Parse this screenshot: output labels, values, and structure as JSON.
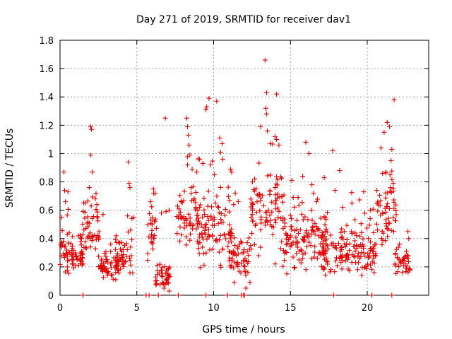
{
  "chart_data": {
    "type": "scatter",
    "title": "Day 271 of 2019, SRMTID for receiver dav1",
    "xlabel": "GPS time / hours",
    "ylabel": "SRMTID / TECUs",
    "xlim": [
      0,
      24
    ],
    "ylim": [
      0,
      1.8
    ],
    "xticks": [
      0,
      5,
      10,
      15,
      20
    ],
    "yticks": [
      0,
      0.2,
      0.4,
      0.6,
      0.8,
      1,
      1.2,
      1.4,
      1.6,
      1.8
    ],
    "grid": true,
    "marker": "+",
    "series": [
      {
        "name": "SRMTID",
        "color": "#e00000",
        "segments": [
          {
            "x0": 0.0,
            "x1": 0.9,
            "base": 0.32,
            "spread": 0.14,
            "spikes": [
              [
                0.25,
                0.87
              ],
              [
                0.3,
                0.74
              ],
              [
                0.35,
                0.66
              ],
              [
                0.1,
                0.55
              ],
              [
                0.6,
                0.44
              ]
            ]
          },
          {
            "x0": 0.7,
            "x1": 1.5,
            "base": 0.28,
            "spread": 0.07,
            "spikes": [
              [
                1.2,
                0.42
              ],
              [
                1.4,
                0.4
              ]
            ]
          },
          {
            "x0": 1.3,
            "x1": 2.6,
            "base": 0.46,
            "spread": 0.16,
            "spikes": [
              [
                2.0,
                1.19
              ],
              [
                2.05,
                1.17
              ],
              [
                2.0,
                0.99
              ],
              [
                2.1,
                0.87
              ],
              [
                1.9,
                0.76
              ],
              [
                2.3,
                0.68
              ],
              [
                2.4,
                0.64
              ]
            ]
          },
          {
            "x0": 2.5,
            "x1": 3.9,
            "base": 0.2,
            "spread": 0.08,
            "spikes": [
              [
                2.8,
                0.57
              ],
              [
                3.3,
                0.36
              ]
            ]
          },
          {
            "x0": 3.6,
            "x1": 4.8,
            "base": 0.28,
            "spread": 0.13,
            "spikes": [
              [
                4.45,
                0.94
              ],
              [
                4.5,
                0.79
              ],
              [
                4.55,
                0.76
              ],
              [
                4.4,
                0.56
              ],
              [
                4.6,
                0.46
              ]
            ]
          },
          {
            "x0": 5.7,
            "x1": 6.3,
            "base": 0.4,
            "spread": 0.18,
            "spikes": [
              [
                5.9,
                0.66
              ],
              [
                6.1,
                0.72
              ],
              [
                6.2,
                0.72
              ]
            ]
          },
          {
            "x0": 6.2,
            "x1": 7.2,
            "base": 0.12,
            "spread": 0.07,
            "spikes": [
              [
                6.85,
                1.25
              ],
              [
                6.9,
                0.59
              ],
              [
                7.1,
                0.6
              ],
              [
                6.6,
                0.58
              ]
            ]
          },
          {
            "x0": 7.6,
            "x1": 9.0,
            "base": 0.55,
            "spread": 0.2,
            "spikes": [
              [
                8.25,
                1.25
              ],
              [
                8.3,
                1.19
              ],
              [
                8.35,
                1.13
              ],
              [
                8.4,
                1.06
              ],
              [
                8.45,
                0.99
              ],
              [
                8.3,
                0.92
              ],
              [
                8.6,
                0.89
              ],
              [
                8.9,
                0.87
              ]
            ]
          },
          {
            "x0": 8.9,
            "x1": 11.2,
            "base": 0.45,
            "spread": 0.22,
            "spikes": [
              [
                9.7,
                1.39
              ],
              [
                10.2,
                1.37
              ],
              [
                9.5,
                1.31
              ],
              [
                9.55,
                1.33
              ],
              [
                10.4,
                1.11
              ],
              [
                10.55,
                1.07
              ],
              [
                10.45,
                1.01
              ],
              [
                10.6,
                0.96
              ],
              [
                11.1,
                0.89
              ],
              [
                9.3,
                0.93
              ],
              [
                9.8,
                0.92
              ]
            ]
          },
          {
            "x0": 11.0,
            "x1": 12.5,
            "base": 0.28,
            "spread": 0.18,
            "spikes": [
              [
                11.3,
                0.64
              ],
              [
                11.6,
                0.66
              ],
              [
                12.1,
                0.05
              ]
            ]
          },
          {
            "x0": 12.4,
            "x1": 14.6,
            "base": 0.6,
            "spread": 0.25,
            "spikes": [
              [
                13.35,
                1.66
              ],
              [
                13.45,
                1.43
              ],
              [
                14.1,
                1.42
              ],
              [
                13.4,
                1.32
              ],
              [
                13.45,
                1.28
              ],
              [
                13.05,
                1.19
              ],
              [
                13.5,
                1.16
              ],
              [
                14.0,
                1.12
              ],
              [
                14.1,
                1.1
              ],
              [
                13.7,
                1.07
              ],
              [
                14.25,
                1.06
              ]
            ]
          },
          {
            "x0": 14.5,
            "x1": 17.5,
            "base": 0.4,
            "spread": 0.18,
            "spikes": [
              [
                16.0,
                1.08
              ],
              [
                16.2,
                1.0
              ],
              [
                15.8,
                0.84
              ],
              [
                16.4,
                0.78
              ],
              [
                16.5,
                0.72
              ],
              [
                15.5,
                0.69
              ],
              [
                16.7,
                0.66
              ]
            ]
          },
          {
            "x0": 17.0,
            "x1": 20.6,
            "base": 0.3,
            "spread": 0.14,
            "spikes": [
              [
                17.75,
                1.02
              ],
              [
                18.2,
                0.88
              ],
              [
                17.2,
                0.83
              ],
              [
                17.9,
                0.74
              ],
              [
                19.0,
                0.65
              ],
              [
                18.4,
                0.62
              ],
              [
                20.2,
                0.6
              ]
            ]
          },
          {
            "x0": 20.5,
            "x1": 21.9,
            "base": 0.55,
            "spread": 0.22,
            "spikes": [
              [
                21.75,
                1.38
              ],
              [
                21.3,
                1.22
              ],
              [
                21.45,
                1.19
              ],
              [
                21.1,
                1.15
              ],
              [
                20.9,
                1.04
              ],
              [
                21.6,
                1.03
              ],
              [
                21.55,
                0.95
              ],
              [
                21.0,
                0.86
              ],
              [
                21.7,
                0.79
              ]
            ]
          },
          {
            "x0": 21.8,
            "x1": 22.8,
            "base": 0.22,
            "spread": 0.08,
            "spikes": [
              [
                22.65,
                0.45
              ],
              [
                22.7,
                0.4
              ],
              [
                22.1,
                0.36
              ]
            ]
          }
        ],
        "zero_points": [
          1.5,
          5.6,
          5.8,
          6.4,
          7.7,
          9.5,
          10.9,
          11.8,
          11.95,
          12.0,
          17.8,
          20.3,
          21.6
        ]
      }
    ]
  }
}
